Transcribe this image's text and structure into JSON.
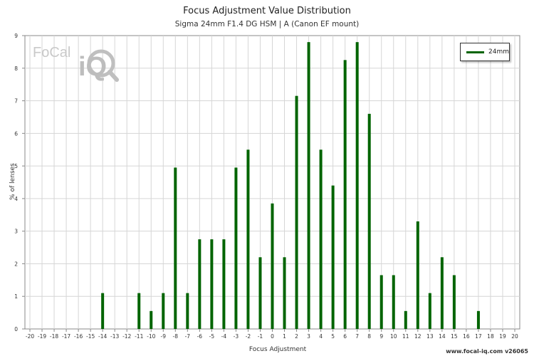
{
  "chart_data": {
    "type": "bar",
    "title": "Focus Adjustment Value Distribution",
    "subtitle": "Sigma 24mm F1.4 DG HSM | A (Canon EF mount)",
    "xlabel": "Focus Adjustment",
    "ylabel": "% of lenses",
    "xlim": [
      -20,
      20
    ],
    "ylim": [
      0,
      9
    ],
    "grid": true,
    "legend_position": "top-right",
    "x": [
      -14,
      -11,
      -10,
      -9,
      -8,
      -7,
      -6,
      -5,
      -4,
      -3,
      -2,
      -1,
      0,
      1,
      2,
      3,
      4,
      5,
      6,
      7,
      8,
      9,
      10,
      11,
      12,
      13,
      14,
      15,
      17
    ],
    "series": [
      {
        "name": "24mm",
        "color": "#006400",
        "values": [
          1.1,
          1.1,
          0.55,
          1.1,
          4.95,
          1.1,
          2.75,
          2.75,
          2.75,
          4.95,
          5.5,
          2.2,
          3.85,
          2.2,
          7.15,
          8.8,
          5.5,
          4.4,
          8.25,
          8.8,
          6.6,
          1.65,
          1.65,
          0.55,
          3.3,
          1.1,
          2.2,
          1.65,
          0.55
        ]
      }
    ]
  },
  "watermark": "www.focal-iq.com  v26065",
  "logo": {
    "text": "FoCal",
    "badge": "iQ"
  }
}
